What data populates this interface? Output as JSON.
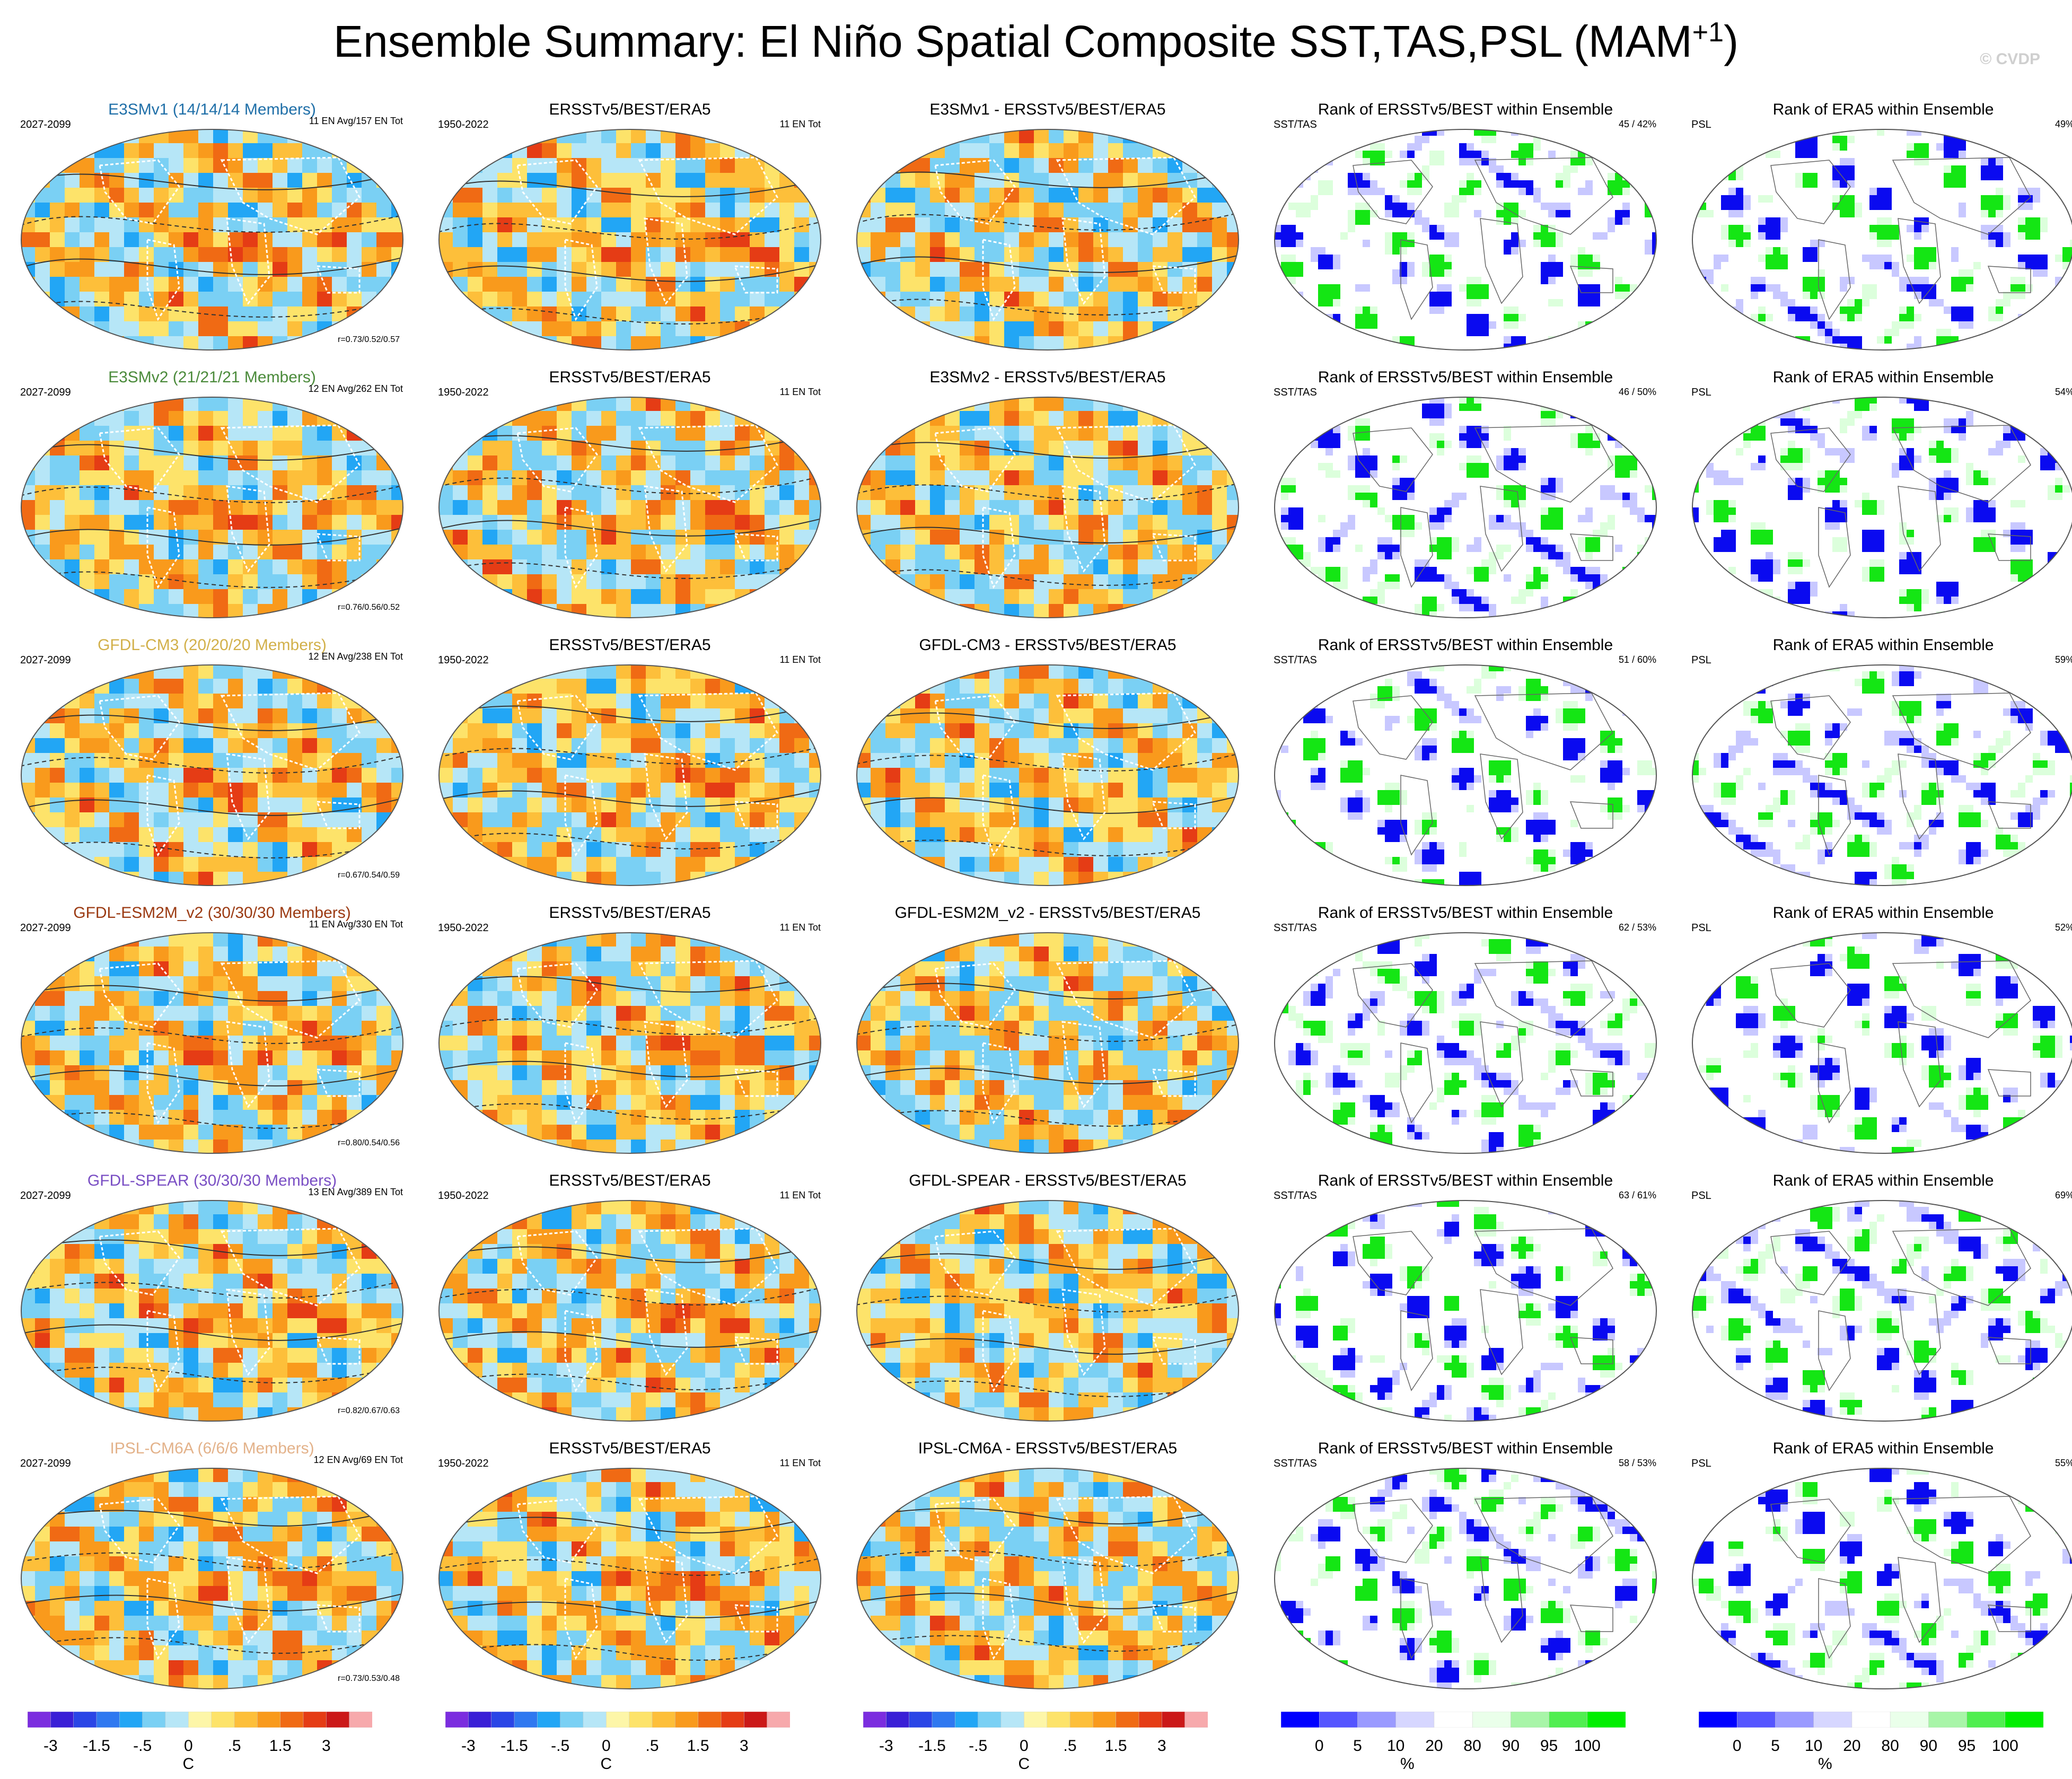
{
  "page": {
    "title_main": "Ensemble Summary: El Niño Spatial Composite SST,TAS,PSL (MAM",
    "title_sup": "+1",
    "title_close": ")",
    "copyright": "© CVDP"
  },
  "colors": {
    "diverging": [
      "#7b2ddf",
      "#3a1fd6",
      "#2a45e6",
      "#2f78f0",
      "#22a6f5",
      "#7ad0f4",
      "#b6e6f7",
      "#fdf6a8",
      "#fde36a",
      "#fdbf3a",
      "#f99a1c",
      "#f06a14",
      "#e53c15",
      "#cb1818",
      "#f7a9ac"
    ],
    "rank": [
      "#0000ff",
      "#5555ff",
      "#9a9aff",
      "#d6d6ff",
      "#ffffff",
      "#eaffea",
      "#a8f5a8",
      "#50ee50",
      "#00ee00"
    ],
    "rank_blue": "#0a0af0",
    "rank_lightblue": "#c8c8ff",
    "rank_green": "#14e614",
    "rank_lightgreen": "#dcffdc",
    "warm": "#fbc343",
    "cool": "#aadcf5"
  },
  "rows": [
    {
      "model": "E3SMv1 (14/14/14 Members)",
      "model_color": "#1f6fa8",
      "period": "2027-2099",
      "members": "11 EN Avg/157 EN Tot",
      "corr": "r=0.73/0.52/0.57",
      "obs_title": "ERSSTv5/BEST/ERA5",
      "obs_period": "1950-2022",
      "obs_count": "11 EN Tot",
      "diff_title": "E3SMv1 - ERSSTv5/BEST/ERA5",
      "rank1_title": "Rank of ERSSTv5/BEST within Ensemble",
      "rank1_var": "SST/TAS",
      "rank1_pct": "45 /  42%",
      "rank2_title": "Rank of ERA5 within Ensemble",
      "rank2_var": "PSL",
      "rank2_pct": "49%"
    },
    {
      "model": "E3SMv2 (21/21/21 Members)",
      "model_color": "#4a8a3a",
      "period": "2027-2099",
      "members": "12 EN Avg/262 EN Tot",
      "corr": "r=0.76/0.56/0.52",
      "obs_title": "ERSSTv5/BEST/ERA5",
      "obs_period": "1950-2022",
      "obs_count": "11 EN Tot",
      "diff_title": "E3SMv2 - ERSSTv5/BEST/ERA5",
      "rank1_title": "Rank of ERSSTv5/BEST within Ensemble",
      "rank1_var": "SST/TAS",
      "rank1_pct": "46 /  50%",
      "rank2_title": "Rank of ERA5 within Ensemble",
      "rank2_var": "PSL",
      "rank2_pct": "54%"
    },
    {
      "model": "GFDL-CM3 (20/20/20 Members)",
      "model_color": "#d2b04a",
      "period": "2027-2099",
      "members": "12 EN Avg/238 EN Tot",
      "corr": "r=0.67/0.54/0.59",
      "obs_title": "ERSSTv5/BEST/ERA5",
      "obs_period": "1950-2022",
      "obs_count": "11 EN Tot",
      "diff_title": "GFDL-CM3 - ERSSTv5/BEST/ERA5",
      "rank1_title": "Rank of ERSSTv5/BEST within Ensemble",
      "rank1_var": "SST/TAS",
      "rank1_pct": "51 /  60%",
      "rank2_title": "Rank of ERA5 within Ensemble",
      "rank2_var": "PSL",
      "rank2_pct": "59%"
    },
    {
      "model": "GFDL-ESM2M_v2 (30/30/30 Members)",
      "model_color": "#9b3a12",
      "period": "2027-2099",
      "members": "11 EN Avg/330 EN Tot",
      "corr": "r=0.80/0.54/0.56",
      "obs_title": "ERSSTv5/BEST/ERA5",
      "obs_period": "1950-2022",
      "obs_count": "11 EN Tot",
      "diff_title": "GFDL-ESM2M_v2 - ERSSTv5/BEST/ERA5",
      "rank1_title": "Rank of ERSSTv5/BEST within Ensemble",
      "rank1_var": "SST/TAS",
      "rank1_pct": "62 /  53%",
      "rank2_title": "Rank of ERA5 within Ensemble",
      "rank2_var": "PSL",
      "rank2_pct": "52%"
    },
    {
      "model": "GFDL-SPEAR (30/30/30 Members)",
      "model_color": "#7a4fc4",
      "period": "2027-2099",
      "members": "13 EN Avg/389 EN Tot",
      "corr": "r=0.82/0.67/0.63",
      "obs_title": "ERSSTv5/BEST/ERA5",
      "obs_period": "1950-2022",
      "obs_count": "11 EN Tot",
      "diff_title": "GFDL-SPEAR - ERSSTv5/BEST/ERA5",
      "rank1_title": "Rank of ERSSTv5/BEST within Ensemble",
      "rank1_var": "SST/TAS",
      "rank1_pct": "63 /  61%",
      "rank2_title": "Rank of ERA5 within Ensemble",
      "rank2_var": "PSL",
      "rank2_pct": "69%"
    },
    {
      "model": "IPSL-CM6A (6/6/6 Members)",
      "model_color": "#e3b28a",
      "period": "2027-2099",
      "members": "12 EN Avg/69 EN Tot",
      "corr": "r=0.73/0.53/0.48",
      "obs_title": "ERSSTv5/BEST/ERA5",
      "obs_period": "1950-2022",
      "obs_count": "11 EN Tot",
      "diff_title": "IPSL-CM6A - ERSSTv5/BEST/ERA5",
      "rank1_title": "Rank of ERSSTv5/BEST within Ensemble",
      "rank1_var": "SST/TAS",
      "rank1_pct": "58 /  53%",
      "rank2_title": "Rank of ERA5 within Ensemble",
      "rank2_var": "PSL",
      "rank2_pct": "55%"
    }
  ],
  "chart_data": {
    "type": "heatmap",
    "title": "Ensemble Summary: El Niño Spatial Composite SST,TAS,PSL (MAM+1)",
    "panel_types": [
      "ensemble mean composite",
      "observed composite",
      "model minus observed",
      "rank of ERSSTv5/BEST within ensemble",
      "rank of ERA5 within ensemble"
    ],
    "diverging_colorbar": {
      "levels": [
        -3.5,
        -3,
        -2.5,
        -2,
        -1.5,
        -1,
        -0.5,
        0,
        0.25,
        0.5,
        1,
        1.5,
        2,
        2.5,
        3
      ],
      "tick_labels": [
        "-3",
        "-1.5",
        "-.5",
        "0",
        ".5",
        "1.5",
        "3"
      ],
      "unit": "C"
    },
    "rank_colorbar": {
      "levels": [
        0,
        5,
        10,
        20,
        80,
        90,
        95,
        100
      ],
      "tick_labels": [
        "0",
        "5",
        "10",
        "20",
        "80",
        "90",
        "95",
        "100"
      ],
      "unit": "%"
    }
  }
}
